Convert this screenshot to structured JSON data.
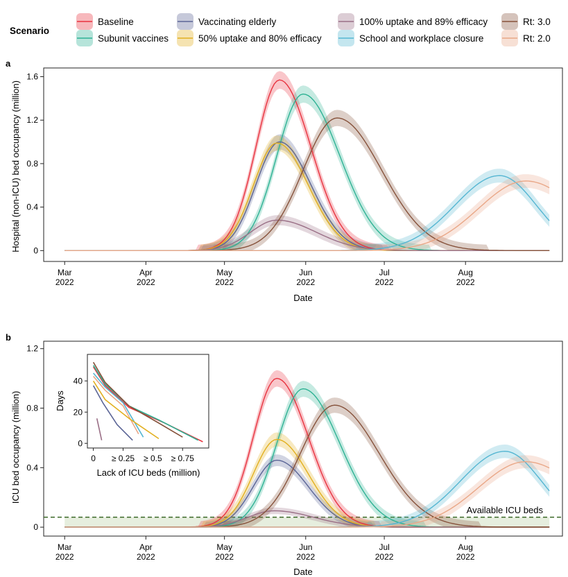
{
  "legend": {
    "title": "Scenario",
    "items": [
      {
        "key": "baseline",
        "label": "Baseline",
        "color": "#e8333f"
      },
      {
        "key": "subunit",
        "label": "Subunit vaccines",
        "color": "#2eb294"
      },
      {
        "key": "elderly",
        "label": "Vaccinating elderly",
        "color": "#5b6596"
      },
      {
        "key": "u50",
        "label": "50% uptake and 80% efficacy",
        "color": "#e2b020"
      },
      {
        "key": "u100",
        "label": "100% uptake and 89% efficacy",
        "color": "#9a6f86"
      },
      {
        "key": "school",
        "label": "School and workplace closure",
        "color": "#55b6d2"
      },
      {
        "key": "rt3",
        "label": "Rt: 3.0",
        "color": "#86523b"
      },
      {
        "key": "rt2",
        "label": "Rt: 2.0",
        "color": "#e9a787"
      }
    ]
  },
  "x_axis": {
    "label": "Date",
    "ticks": [
      {
        "month": "Mar",
        "year": "2022",
        "day": 0
      },
      {
        "month": "Apr",
        "year": "2022",
        "day": 31
      },
      {
        "month": "May",
        "year": "2022",
        "day": 61
      },
      {
        "month": "Jun",
        "year": "2022",
        "day": 92
      },
      {
        "month": "Jul",
        "year": "2022",
        "day": 122
      },
      {
        "month": "Aug",
        "year": "2022",
        "day": 153
      }
    ]
  },
  "chart_data": [
    {
      "panel_label": "a",
      "type": "line",
      "x_unit": "days since 1 Mar 2022",
      "xlim": [
        -8,
        190
      ],
      "ylabel": "Hospital (non-ICU) bed occupancy (million)",
      "xlabel": "Date",
      "ylim": [
        -0.1,
        1.68
      ],
      "yticks": [
        {
          "v": 0,
          "t": "0"
        },
        {
          "v": 0.4,
          "t": "0.4"
        },
        {
          "v": 0.8,
          "t": "0.8"
        },
        {
          "v": 1.2,
          "t": "1.2"
        },
        {
          "v": 1.6,
          "t": "1.6"
        }
      ],
      "series": [
        {
          "key": "baseline",
          "peak_day": 82,
          "peak": 1.57,
          "w_rise": 9,
          "w_fall": 12,
          "band": 0.05
        },
        {
          "key": "subunit",
          "peak_day": 91,
          "peak": 1.44,
          "w_rise": 10,
          "w_fall": 14,
          "band": 0.05
        },
        {
          "key": "elderly",
          "peak_day": 82,
          "peak": 1.0,
          "w_rise": 9,
          "w_fall": 12,
          "band": 0.05
        },
        {
          "key": "u50",
          "peak_day": 81,
          "peak": 0.99,
          "w_rise": 9,
          "w_fall": 12,
          "band": 0.05
        },
        {
          "key": "u100",
          "peak_day": 81,
          "peak": 0.28,
          "w_rise": 10,
          "w_fall": 15,
          "band": 0.04
        },
        {
          "key": "rt3",
          "peak_day": 104,
          "peak": 1.22,
          "w_rise": 13,
          "w_fall": 17,
          "band": 0.05
        },
        {
          "key": "school",
          "peak_day": 166,
          "peak": 0.69,
          "w_rise": 17,
          "w_fall": 14,
          "band": 0.05
        },
        {
          "key": "rt2",
          "peak_day": 176,
          "peak": 0.64,
          "w_rise": 18,
          "w_fall": 20,
          "band": 0.05
        }
      ]
    },
    {
      "panel_label": "b",
      "type": "line",
      "x_unit": "days since 1 Mar 2022",
      "xlim": [
        -8,
        190
      ],
      "ylabel": "ICU bed occupancy (million)",
      "xlabel": "Date",
      "ylim": [
        -0.06,
        1.25
      ],
      "yticks": [
        {
          "v": 0,
          "t": "0"
        },
        {
          "v": 0.4,
          "t": "0.4"
        },
        {
          "v": 0.8,
          "t": "0.8"
        },
        {
          "v": 1.2,
          "t": "1.2"
        }
      ],
      "available_icu_beds": {
        "value": 0.067,
        "label": "Available ICU beds",
        "color": "#3d6b2a"
      },
      "series": [
        {
          "key": "baseline",
          "peak_day": 81,
          "peak": 1.0,
          "w_rise": 9,
          "w_fall": 12,
          "band": 0.035
        },
        {
          "key": "subunit",
          "peak_day": 91,
          "peak": 0.93,
          "w_rise": 10,
          "w_fall": 14,
          "band": 0.035
        },
        {
          "key": "elderly",
          "peak_day": 81,
          "peak": 0.45,
          "w_rise": 9,
          "w_fall": 12,
          "band": 0.03
        },
        {
          "key": "u50",
          "peak_day": 81,
          "peak": 0.59,
          "w_rise": 9,
          "w_fall": 12,
          "band": 0.035
        },
        {
          "key": "u100",
          "peak_day": 80,
          "peak": 0.11,
          "w_rise": 10,
          "w_fall": 15,
          "band": 0.02
        },
        {
          "key": "rt3",
          "peak_day": 103,
          "peak": 0.82,
          "w_rise": 13,
          "w_fall": 17,
          "band": 0.035
        },
        {
          "key": "school",
          "peak_day": 168,
          "peak": 0.51,
          "w_rise": 17,
          "w_fall": 14,
          "band": 0.035
        },
        {
          "key": "rt2",
          "peak_day": 176,
          "peak": 0.44,
          "w_rise": 18,
          "w_fall": 20,
          "band": 0.035
        }
      ]
    },
    {
      "panel_label": "b-inset",
      "type": "line",
      "xlabel": "Lack of ICU beds (million)",
      "ylabel": "Days",
      "xlim": [
        -0.05,
        0.97
      ],
      "ylim": [
        -3,
        57
      ],
      "xticks": [
        {
          "v": 0,
          "t": "0"
        },
        {
          "v": 0.25,
          "t": "≥ 0.25"
        },
        {
          "v": 0.5,
          "t": "≥ 0.5"
        },
        {
          "v": 0.75,
          "t": "≥ 0.75"
        }
      ],
      "yticks": [
        {
          "v": 0,
          "t": "0"
        },
        {
          "v": 20,
          "t": "20"
        },
        {
          "v": 40,
          "t": "40"
        }
      ],
      "series": [
        {
          "key": "baseline",
          "points": [
            [
              0.0,
              49
            ],
            [
              0.1,
              37
            ],
            [
              0.3,
              23
            ],
            [
              0.6,
              13
            ],
            [
              0.92,
              1
            ]
          ]
        },
        {
          "key": "subunit",
          "points": [
            [
              0.0,
              50
            ],
            [
              0.1,
              38
            ],
            [
              0.3,
              24
            ],
            [
              0.55,
              15
            ],
            [
              0.88,
              2
            ]
          ]
        },
        {
          "key": "rt3",
          "points": [
            [
              0.0,
              52
            ],
            [
              0.1,
              39
            ],
            [
              0.3,
              24
            ],
            [
              0.55,
              13
            ],
            [
              0.75,
              4
            ]
          ]
        },
        {
          "key": "school",
          "points": [
            [
              0.0,
              45
            ],
            [
              0.1,
              36
            ],
            [
              0.25,
              26
            ],
            [
              0.42,
              4
            ]
          ]
        },
        {
          "key": "rt2",
          "points": [
            [
              0.0,
              43
            ],
            [
              0.1,
              34
            ],
            [
              0.25,
              24
            ],
            [
              0.38,
              6
            ]
          ]
        },
        {
          "key": "u50",
          "points": [
            [
              0.0,
              40
            ],
            [
              0.1,
              28
            ],
            [
              0.3,
              16
            ],
            [
              0.55,
              3
            ]
          ]
        },
        {
          "key": "elderly",
          "points": [
            [
              0.0,
              37
            ],
            [
              0.08,
              26
            ],
            [
              0.2,
              12
            ],
            [
              0.33,
              2
            ]
          ]
        },
        {
          "key": "u100",
          "points": [
            [
              0.03,
              16
            ],
            [
              0.07,
              2
            ]
          ]
        }
      ]
    }
  ]
}
